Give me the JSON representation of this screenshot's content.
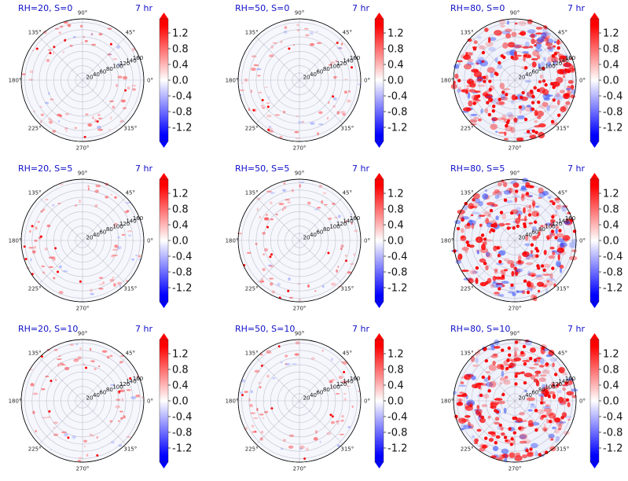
{
  "chart_data": {
    "type": "heatmap",
    "projection": "polar",
    "time_label": "7 hr",
    "angle_tick_labels": [
      "0°",
      "45°",
      "90°",
      "135°",
      "180°",
      "225°",
      "270°",
      "315°"
    ],
    "radial_tick_labels": [
      "20",
      "40",
      "60",
      "80",
      "100",
      "120",
      "140",
      "160"
    ],
    "r_range": [
      0,
      170
    ],
    "colormap": {
      "name": "diverging blue-white-red",
      "low_color": "#0000ff",
      "mid_color": "#ffffff",
      "high_color": "#ff0000",
      "vmin": -1.4,
      "vmax": 1.4,
      "extend": "both",
      "tick_labels": [
        "1.2",
        "0.8",
        "0.4",
        "0.0",
        "-0.4",
        "-0.8",
        "-1.2"
      ],
      "tick_values": [
        1.2,
        0.8,
        0.4,
        0.0,
        -0.4,
        -0.8,
        -1.2
      ]
    },
    "panels": [
      {
        "title": "RH=20, S=0",
        "RH": 20,
        "S": 0,
        "activity": "low"
      },
      {
        "title": "RH=50, S=0",
        "RH": 50,
        "S": 0,
        "activity": "low"
      },
      {
        "title": "RH=80, S=0",
        "RH": 80,
        "S": 0,
        "activity": "high"
      },
      {
        "title": "RH=20, S=5",
        "RH": 20,
        "S": 5,
        "activity": "low"
      },
      {
        "title": "RH=50, S=5",
        "RH": 50,
        "S": 5,
        "activity": "low"
      },
      {
        "title": "RH=80, S=5",
        "RH": 80,
        "S": 5,
        "activity": "high"
      },
      {
        "title": "RH=20, S=10",
        "RH": 20,
        "S": 10,
        "activity": "low"
      },
      {
        "title": "RH=50, S=10",
        "RH": 50,
        "S": 10,
        "activity": "low"
      },
      {
        "title": "RH=80, S=10",
        "RH": 80,
        "S": 10,
        "activity": "high"
      }
    ],
    "grid": true,
    "legend": "colorbar-right-of-each-panel"
  }
}
